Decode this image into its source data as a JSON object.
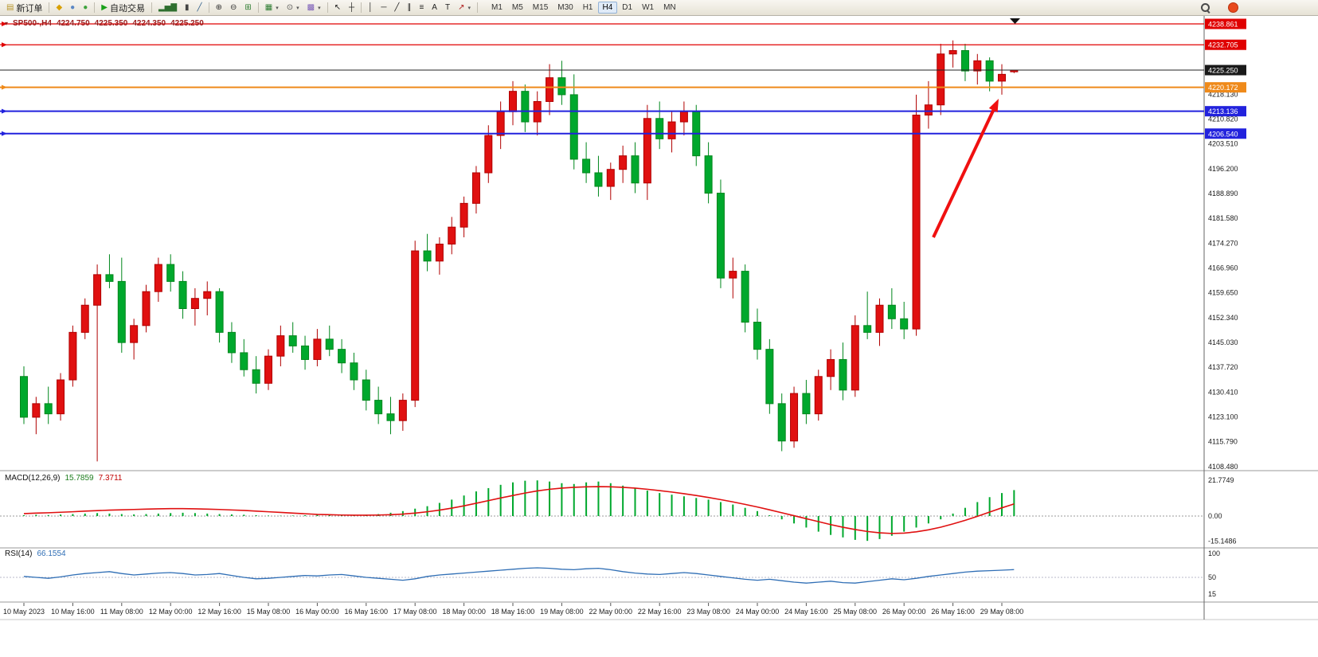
{
  "toolbar": {
    "items": [
      {
        "kind": "button",
        "name": "new-order-button",
        "label": "新订单",
        "icon": {
          "name": "new-order-icon",
          "glyph": "▤",
          "color": "#b8952a"
        }
      },
      {
        "kind": "sep"
      },
      {
        "kind": "button",
        "name": "announcements-button",
        "icon": {
          "name": "megaphone-icon",
          "glyph": "◆",
          "color": "#d9a000"
        }
      },
      {
        "kind": "button",
        "name": "messages-button",
        "icon": {
          "name": "chat-icon",
          "glyph": "●",
          "color": "#5b87c5"
        }
      },
      {
        "kind": "button",
        "name": "community-button",
        "icon": {
          "name": "globe-icon",
          "glyph": "●",
          "color": "#3da33d"
        }
      },
      {
        "kind": "sep"
      },
      {
        "kind": "button",
        "name": "autotrading-button",
        "label": "自动交易",
        "icon": {
          "name": "play-icon",
          "glyph": "▶",
          "color": "#18a018"
        }
      },
      {
        "kind": "sep"
      },
      {
        "kind": "button",
        "name": "ohlc-bars-button",
        "icon": {
          "name": "ohlc-bars-icon",
          "glyph": "▂▅▇",
          "color": "#2f6f2f"
        }
      },
      {
        "kind": "button",
        "name": "candlestick-button",
        "icon": {
          "name": "candlestick-icon",
          "glyph": "▮",
          "color": "#444444"
        }
      },
      {
        "kind": "button",
        "name": "line-chart-button",
        "icon": {
          "name": "line-chart-icon",
          "glyph": "╱",
          "color": "#2e5d8a"
        }
      },
      {
        "kind": "sep"
      },
      {
        "kind": "button",
        "name": "zoom-in-button",
        "icon": {
          "name": "zoom-in-icon",
          "glyph": "⊕",
          "color": "#333333"
        }
      },
      {
        "kind": "button",
        "name": "zoom-out-button",
        "icon": {
          "name": "zoom-out-icon",
          "glyph": "⊖",
          "color": "#333333"
        }
      },
      {
        "kind": "button",
        "name": "tile-windows-button",
        "icon": {
          "name": "tile-windows-icon",
          "glyph": "⊞",
          "color": "#2e7d32"
        }
      },
      {
        "kind": "sep"
      },
      {
        "kind": "button",
        "name": "new-chart-button",
        "caret": true,
        "icon": {
          "name": "new-chart-icon",
          "glyph": "▦",
          "color": "#2e7d32"
        }
      },
      {
        "kind": "button",
        "name": "periods-button",
        "caret": true,
        "icon": {
          "name": "clock-icon",
          "glyph": "⊙",
          "color": "#555555"
        }
      },
      {
        "kind": "button",
        "name": "templates-button",
        "caret": true,
        "icon": {
          "name": "template-icon",
          "glyph": "▩",
          "color": "#7b5cb8"
        }
      },
      {
        "kind": "sep"
      },
      {
        "kind": "button",
        "name": "cursor-button",
        "icon": {
          "name": "cursor-icon",
          "glyph": "↖",
          "color": "#222222"
        }
      },
      {
        "kind": "button",
        "name": "crosshair-button",
        "icon": {
          "name": "crosshair-icon",
          "glyph": "┼",
          "color": "#222222"
        }
      },
      {
        "kind": "sep"
      },
      {
        "kind": "button",
        "name": "vertical-line-button",
        "icon": {
          "name": "vertical-line-icon",
          "glyph": "│",
          "color": "#222222"
        }
      },
      {
        "kind": "button",
        "name": "horizontal-line-button",
        "icon": {
          "name": "horizontal-line-icon",
          "glyph": "─",
          "color": "#222222"
        }
      },
      {
        "kind": "button",
        "name": "trendline-button",
        "icon": {
          "name": "trendline-icon",
          "glyph": "╱",
          "color": "#222222"
        }
      },
      {
        "kind": "button",
        "name": "channel-button",
        "icon": {
          "name": "channel-icon",
          "glyph": "∥",
          "color": "#222222"
        }
      },
      {
        "kind": "button",
        "name": "fibonacci-button",
        "icon": {
          "name": "fibonacci-icon",
          "glyph": "≡",
          "color": "#222222"
        }
      },
      {
        "kind": "button",
        "name": "text-button",
        "icon": {
          "name": "text-icon",
          "glyph": "A",
          "color": "#222222"
        }
      },
      {
        "kind": "button",
        "name": "label-button",
        "icon": {
          "name": "label-icon",
          "glyph": "T",
          "color": "#222222"
        }
      },
      {
        "kind": "button",
        "name": "arrows-button",
        "caret": true,
        "icon": {
          "name": "arrow-objects-icon",
          "glyph": "↗",
          "color": "#b02020"
        }
      },
      {
        "kind": "sep"
      }
    ],
    "timeframes": {
      "items": [
        "M1",
        "M5",
        "M15",
        "M30",
        "H1",
        "H4",
        "D1",
        "W1",
        "MN"
      ],
      "active": "H4"
    }
  },
  "chart": {
    "info": {
      "symbol_period": "SP500-,H4",
      "open": "4224.750",
      "high": "4225.350",
      "low": "4224.350",
      "close": "4225.250"
    },
    "current_price": {
      "label": "4225.250",
      "price": 4225.25,
      "color": "#1a1a1a"
    },
    "levels": [
      {
        "label": "4238.861",
        "price": 4238.861,
        "color": "#e00000",
        "width": 1.2
      },
      {
        "label": "4232.705",
        "price": 4232.705,
        "color": "#e00000",
        "width": 1.2
      },
      {
        "label": "4220.172",
        "price": 4220.172,
        "color": "#ef8a1a",
        "width": 2
      },
      {
        "label": "4213.136",
        "price": 4213.136,
        "color": "#2222dd",
        "width": 2
      },
      {
        "label": "4206.540",
        "price": 4206.54,
        "color": "#2222dd",
        "width": 2
      }
    ],
    "price_scale": [
      "4218.130",
      "4210.820",
      "4203.510",
      "4196.200",
      "4188.890",
      "4181.580",
      "4174.270",
      "4166.960",
      "4159.650",
      "4152.340",
      "4145.030",
      "4137.720",
      "4130.410",
      "4123.100",
      "4115.790",
      "4108.480"
    ],
    "time_scale": [
      "10 May 2023",
      "10 May 16:00",
      "11 May 08:00",
      "12 May 00:00",
      "12 May 16:00",
      "15 May 08:00",
      "16 May 00:00",
      "16 May 16:00",
      "17 May 08:00",
      "18 May 00:00",
      "18 May 16:00",
      "19 May 08:00",
      "22 May 00:00",
      "22 May 16:00",
      "23 May 08:00",
      "24 May 00:00",
      "24 May 16:00",
      "25 May 08:00",
      "26 May 00:00",
      "26 May 16:00",
      "29 May 08:00"
    ],
    "arrow_annotation": {
      "color": "#f01010"
    }
  },
  "macd": {
    "label": "MACD(12,26,9)",
    "main": "15.7859",
    "signal": "7.3711",
    "scale": [
      "21.7749",
      "0.00",
      "-15.1486"
    ]
  },
  "rsi": {
    "label": "RSI(14)",
    "value": "66.1554",
    "scale": [
      "100",
      "50",
      "15"
    ]
  },
  "chart_data": {
    "type": "candlestick",
    "symbol": "SP500-",
    "timeframe": "H4",
    "up_color": "#e01010",
    "down_color": "#00a82d",
    "ylim": [
      4108.48,
      4238.861
    ],
    "candles": [
      [
        4135,
        4138,
        4121,
        4123
      ],
      [
        4123,
        4129,
        4118,
        4127
      ],
      [
        4127,
        4132,
        4121,
        4124
      ],
      [
        4124,
        4136,
        4122,
        4134
      ],
      [
        4134,
        4150,
        4132,
        4148
      ],
      [
        4148,
        4158,
        4146,
        4156
      ],
      [
        4156,
        4168,
        4110,
        4165
      ],
      [
        4165,
        4171,
        4161,
        4163
      ],
      [
        4163,
        4170,
        4142,
        4145
      ],
      [
        4145,
        4152,
        4140,
        4150
      ],
      [
        4150,
        4162,
        4148,
        4160
      ],
      [
        4160,
        4170,
        4157,
        4168
      ],
      [
        4168,
        4171,
        4160,
        4163
      ],
      [
        4163,
        4166,
        4152,
        4155
      ],
      [
        4155,
        4161,
        4150,
        4158
      ],
      [
        4158,
        4163,
        4153,
        4160
      ],
      [
        4160,
        4161,
        4145,
        4148
      ],
      [
        4148,
        4151,
        4139,
        4142
      ],
      [
        4142,
        4146,
        4135,
        4137
      ],
      [
        4137,
        4141,
        4130,
        4133
      ],
      [
        4133,
        4143,
        4131,
        4141
      ],
      [
        4141,
        4150,
        4138,
        4147
      ],
      [
        4147,
        4151,
        4142,
        4144
      ],
      [
        4144,
        4147,
        4137,
        4140
      ],
      [
        4140,
        4149,
        4138,
        4146
      ],
      [
        4146,
        4150,
        4141,
        4143
      ],
      [
        4143,
        4146,
        4136,
        4139
      ],
      [
        4139,
        4142,
        4131,
        4134
      ],
      [
        4134,
        4137,
        4125,
        4128
      ],
      [
        4128,
        4132,
        4121,
        4124
      ],
      [
        4124,
        4129,
        4118,
        4122
      ],
      [
        4122,
        4130,
        4119,
        4128
      ],
      [
        4128,
        4175,
        4126,
        4172
      ],
      [
        4172,
        4177,
        4166,
        4169
      ],
      [
        4169,
        4176,
        4165,
        4174
      ],
      [
        4174,
        4182,
        4171,
        4179
      ],
      [
        4179,
        4188,
        4176,
        4186
      ],
      [
        4186,
        4197,
        4183,
        4195
      ],
      [
        4195,
        4209,
        4192,
        4206
      ],
      [
        4206,
        4216,
        4202,
        4213
      ],
      [
        4213,
        4222,
        4209,
        4219
      ],
      [
        4219,
        4221,
        4207,
        4210
      ],
      [
        4210,
        4219,
        4206,
        4216
      ],
      [
        4216,
        4227,
        4212,
        4223
      ],
      [
        4223,
        4228,
        4215,
        4218
      ],
      [
        4218,
        4224,
        4196,
        4199
      ],
      [
        4199,
        4204,
        4192,
        4195
      ],
      [
        4195,
        4200,
        4188,
        4191
      ],
      [
        4191,
        4198,
        4187,
        4196
      ],
      [
        4196,
        4203,
        4192,
        4200
      ],
      [
        4200,
        4204,
        4189,
        4192
      ],
      [
        4192,
        4215,
        4187,
        4211
      ],
      [
        4211,
        4216,
        4202,
        4205
      ],
      [
        4205,
        4213,
        4201,
        4210
      ],
      [
        4210,
        4216,
        4206,
        4213
      ],
      [
        4213,
        4215,
        4197,
        4200
      ],
      [
        4200,
        4204,
        4186,
        4189
      ],
      [
        4189,
        4193,
        4161,
        4164
      ],
      [
        4164,
        4170,
        4158,
        4166
      ],
      [
        4166,
        4168,
        4148,
        4151
      ],
      [
        4151,
        4155,
        4140,
        4143
      ],
      [
        4143,
        4146,
        4124,
        4127
      ],
      [
        4127,
        4130,
        4113,
        4116
      ],
      [
        4116,
        4132,
        4114,
        4130
      ],
      [
        4130,
        4134,
        4121,
        4124
      ],
      [
        4124,
        4137,
        4122,
        4135
      ],
      [
        4135,
        4143,
        4131,
        4140
      ],
      [
        4140,
        4145,
        4128,
        4131
      ],
      [
        4131,
        4153,
        4129,
        4150
      ],
      [
        4150,
        4160,
        4146,
        4148
      ],
      [
        4148,
        4158,
        4144,
        4156
      ],
      [
        4156,
        4161,
        4149,
        4152
      ],
      [
        4152,
        4157,
        4146,
        4149
      ],
      [
        4149,
        4218,
        4147,
        4212
      ],
      [
        4212,
        4222,
        4208,
        4215
      ],
      [
        4215,
        4233,
        4212,
        4230
      ],
      [
        4230,
        4234,
        4226,
        4231
      ],
      [
        4231,
        4233,
        4222,
        4225
      ],
      [
        4225,
        4230,
        4221,
        4228
      ],
      [
        4228,
        4229,
        4219,
        4222
      ],
      [
        4222,
        4227,
        4218,
        4224
      ],
      [
        4224.75,
        4225.35,
        4224.35,
        4225.25
      ]
    ],
    "macd_histogram": [
      0.5,
      0.8,
      0.6,
      0.9,
      1.2,
      1.5,
      1.8,
      1.5,
      1.2,
      1.0,
      1.2,
      1.5,
      1.8,
      2.0,
      1.8,
      1.5,
      1.2,
      1.0,
      0.8,
      0.5,
      0.3,
      0.2,
      0.3,
      0.5,
      0.8,
      1.0,
      0.8,
      0.5,
      0.8,
      1.2,
      2.0,
      3.0,
      4.5,
      6.0,
      8.0,
      10.0,
      12.5,
      15.0,
      17.0,
      19.0,
      20.5,
      21.5,
      21.7,
      21.0,
      20.0,
      19.5,
      20.5,
      21.0,
      20.0,
      18.5,
      17.0,
      15.5,
      14.0,
      13.0,
      12.0,
      11.0,
      10.0,
      8.5,
      7.0,
      5.0,
      3.0,
      0.5,
      -2.0,
      -4.5,
      -7.0,
      -9.5,
      -11.5,
      -13.0,
      -14.5,
      -15.1,
      -14.0,
      -12.0,
      -9.5,
      -7.0,
      -4.5,
      -2.0,
      1.5,
      5.0,
      8.5,
      11.5,
      14.0,
      15.8
    ],
    "macd_signal": [
      1.5,
      1.8,
      2.0,
      2.3,
      2.6,
      3.0,
      3.3,
      3.6,
      3.8,
      4.0,
      4.2,
      4.4,
      4.5,
      4.5,
      4.4,
      4.2,
      4.0,
      3.7,
      3.4,
      3.0,
      2.6,
      2.2,
      1.8,
      1.4,
      1.0,
      0.8,
      0.6,
      0.5,
      0.5,
      0.6,
      0.8,
      1.2,
      1.8,
      2.6,
      3.6,
      4.8,
      6.2,
      7.8,
      9.4,
      11.0,
      12.5,
      14.0,
      15.3,
      16.3,
      17.0,
      17.5,
      17.8,
      17.9,
      17.8,
      17.5,
      17.0,
      16.3,
      15.5,
      14.6,
      13.6,
      12.5,
      11.3,
      10.0,
      8.6,
      7.1,
      5.5,
      3.8,
      2.0,
      0.2,
      -1.6,
      -3.4,
      -5.2,
      -6.8,
      -8.2,
      -9.4,
      -10.2,
      -10.6,
      -10.4,
      -9.6,
      -8.4,
      -6.8,
      -4.8,
      -2.6,
      -0.2,
      2.4,
      5.0,
      7.37
    ],
    "rsi": [
      52,
      50,
      48,
      51,
      55,
      58,
      60,
      62,
      58,
      55,
      57,
      59,
      60,
      58,
      55,
      56,
      58,
      54,
      50,
      47,
      48,
      50,
      52,
      54,
      53,
      55,
      56,
      53,
      50,
      48,
      46,
      44,
      47,
      52,
      55,
      57,
      59,
      61,
      63,
      65,
      67,
      69,
      70,
      69,
      67,
      66,
      68,
      69,
      66,
      62,
      59,
      57,
      56,
      58,
      60,
      58,
      55,
      52,
      49,
      46,
      44,
      46,
      43,
      40,
      38,
      40,
      42,
      39,
      38,
      41,
      44,
      47,
      45,
      48,
      52,
      55,
      58,
      61,
      63,
      64,
      65,
      66.2
    ]
  }
}
